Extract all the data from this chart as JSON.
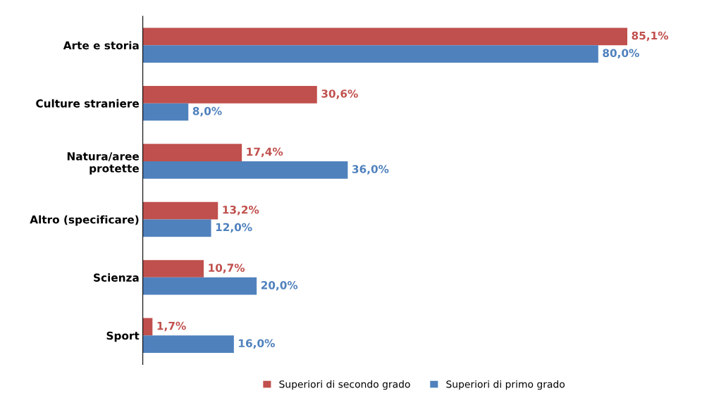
{
  "chart_data": {
    "type": "bar",
    "orientation": "horizontal",
    "categories": [
      "Arte e storia",
      "Culture straniere",
      "Natura/aree\nprotette",
      "Altro (specificare)",
      "Scienza",
      "Sport"
    ],
    "series": [
      {
        "name": "Superiori di secondo grado",
        "color": "#c0504d",
        "values": [
          85.1,
          30.6,
          17.4,
          13.2,
          10.7,
          1.7
        ],
        "value_labels": [
          "85,1%",
          "30,6%",
          "17,4%",
          "13,2%",
          "10,7%",
          "1,7%"
        ]
      },
      {
        "name": "Superiori di primo grado",
        "color": "#4f81bd",
        "values": [
          80.0,
          8.0,
          36.0,
          12.0,
          20.0,
          16.0
        ],
        "value_labels": [
          "80,0%",
          "8,0%",
          "36,0%",
          "12,0%",
          "20,0%",
          "16,0%"
        ]
      }
    ],
    "tick_labels": "y",
    "grid": false,
    "legend": "bottom"
  }
}
